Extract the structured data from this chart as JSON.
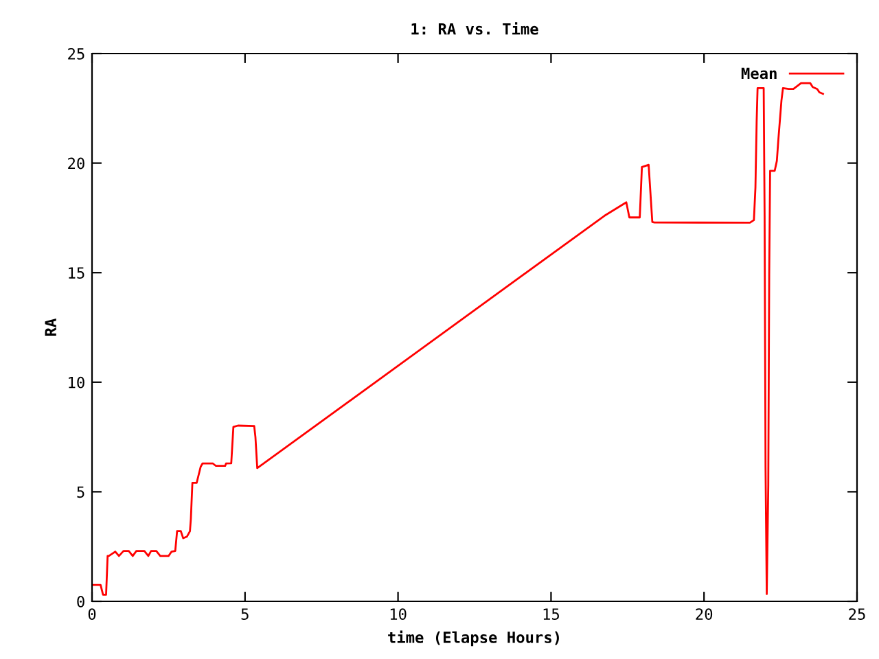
{
  "chart_data": {
    "type": "line",
    "title": "1: RA vs. Time",
    "xlabel": "time (Elapse Hours)",
    "ylabel": "RA",
    "xlim": [
      0,
      25
    ],
    "ylim": [
      0,
      25
    ],
    "xticks": [
      0,
      5,
      10,
      15,
      20,
      25
    ],
    "yticks": [
      0,
      5,
      10,
      15,
      20,
      25
    ],
    "grid": false,
    "legend": "top right",
    "marker": "none",
    "line_style": "solid",
    "series": [
      {
        "name": "Mean",
        "color": "#ff0000",
        "x": [
          0,
          0.28,
          0.36,
          0.46,
          0.51,
          0.55,
          0.76,
          0.88,
          1.03,
          1.2,
          1.33,
          1.45,
          1.71,
          1.84,
          1.93,
          2.1,
          2.23,
          2.5,
          2.6,
          2.72,
          2.78,
          2.9,
          2.98,
          3.1,
          3.2,
          3.23,
          3.28,
          3.42,
          3.55,
          3.61,
          3.95,
          4.05,
          4.35,
          4.38,
          4.55,
          4.62,
          4.77,
          5.3,
          5.34,
          5.4,
          16.74,
          17.46,
          17.56,
          17.9,
          17.97,
          18.19,
          18.31,
          18.38,
          21.5,
          21.63,
          21.68,
          21.72,
          21.75,
          21.95,
          21.98,
          22.01,
          22.05,
          22.1,
          22.13,
          22.16,
          22.31,
          22.38,
          22.43,
          22.53,
          22.58,
          22.77,
          22.92,
          23.17,
          23.47,
          23.55,
          23.7,
          23.77,
          23.89
        ],
        "values": [
          0.75,
          0.75,
          0.3,
          0.3,
          2.07,
          2.07,
          2.27,
          2.07,
          2.3,
          2.3,
          2.07,
          2.3,
          2.3,
          2.07,
          2.3,
          2.3,
          2.07,
          2.07,
          2.27,
          2.3,
          3.21,
          3.21,
          2.88,
          2.95,
          3.2,
          3.76,
          5.41,
          5.41,
          6.14,
          6.29,
          6.29,
          6.18,
          6.18,
          6.29,
          6.3,
          7.96,
          8.02,
          8.0,
          7.5,
          6.08,
          17.59,
          18.21,
          17.52,
          17.52,
          19.82,
          19.92,
          17.31,
          17.29,
          17.28,
          17.4,
          18.88,
          21.9,
          23.42,
          23.42,
          17.6,
          6.14,
          0.33,
          5.3,
          14.9,
          19.65,
          19.65,
          20.1,
          21.08,
          22.85,
          23.42,
          23.38,
          23.38,
          23.65,
          23.65,
          23.47,
          23.38,
          23.23,
          23.16
        ]
      }
    ]
  }
}
